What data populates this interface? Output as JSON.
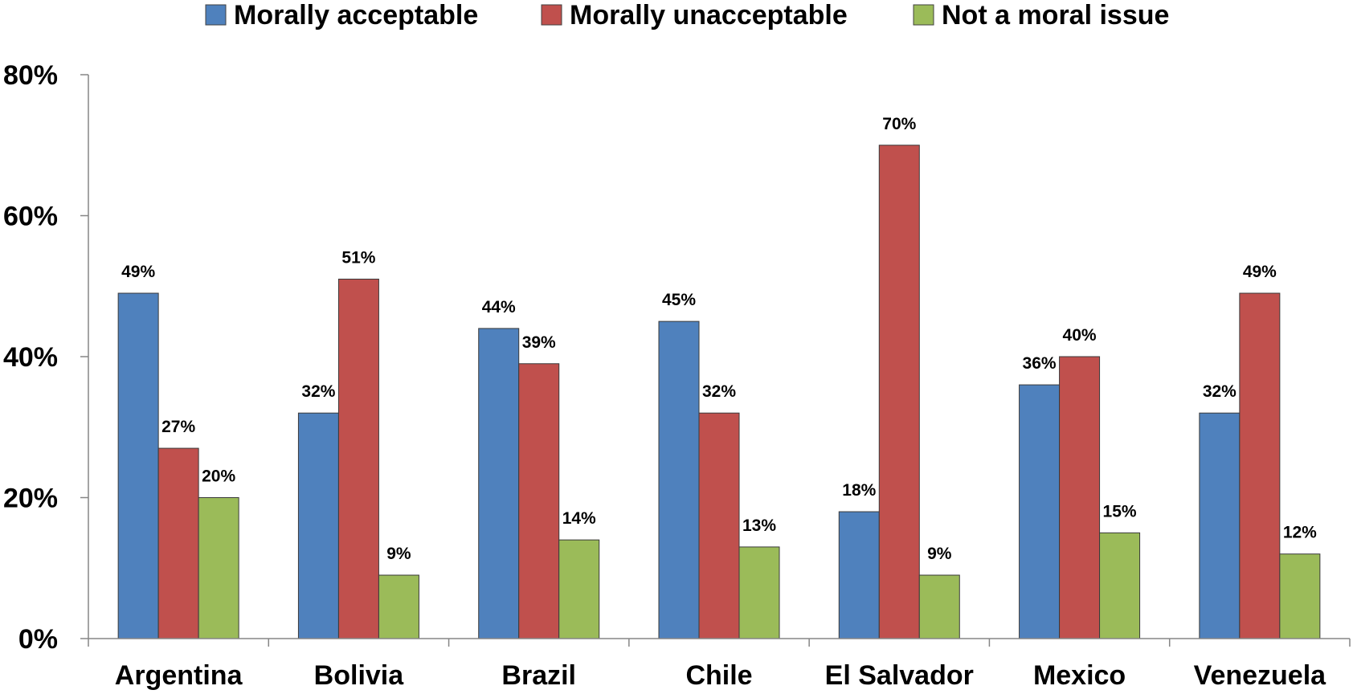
{
  "chart_data": {
    "type": "bar",
    "title": "",
    "xlabel": "",
    "ylabel": "",
    "categories": [
      "Argentina",
      "Bolivia",
      "Brazil",
      "Chile",
      "El Salvador",
      "Mexico",
      "Venezuela"
    ],
    "series": [
      {
        "name": "Morally acceptable",
        "color": "#4F81BD",
        "values": [
          49,
          32,
          44,
          45,
          18,
          36,
          32
        ],
        "labels": [
          "49%",
          "32%",
          "44%",
          "45%",
          "18%",
          "36%",
          "32%"
        ]
      },
      {
        "name": "Morally unacceptable",
        "color": "#C0504D",
        "values": [
          27,
          51,
          39,
          32,
          70,
          40,
          49
        ],
        "labels": [
          "27%",
          "51%",
          "39%",
          "32%",
          "70%",
          "40%",
          "49%"
        ]
      },
      {
        "name": "Not a moral issue",
        "color": "#9BBB59",
        "values": [
          20,
          9,
          14,
          13,
          9,
          15,
          12
        ],
        "labels": [
          "20%",
          "9%",
          "14%",
          "13%",
          "9%",
          "15%",
          "12%"
        ]
      }
    ],
    "yticks": [
      0,
      20,
      40,
      60,
      80
    ],
    "ytick_labels": [
      "0%",
      "20%",
      "40%",
      "60%",
      "80%"
    ],
    "ylim": [
      0,
      80
    ],
    "grid": false,
    "legend_position": "top"
  }
}
